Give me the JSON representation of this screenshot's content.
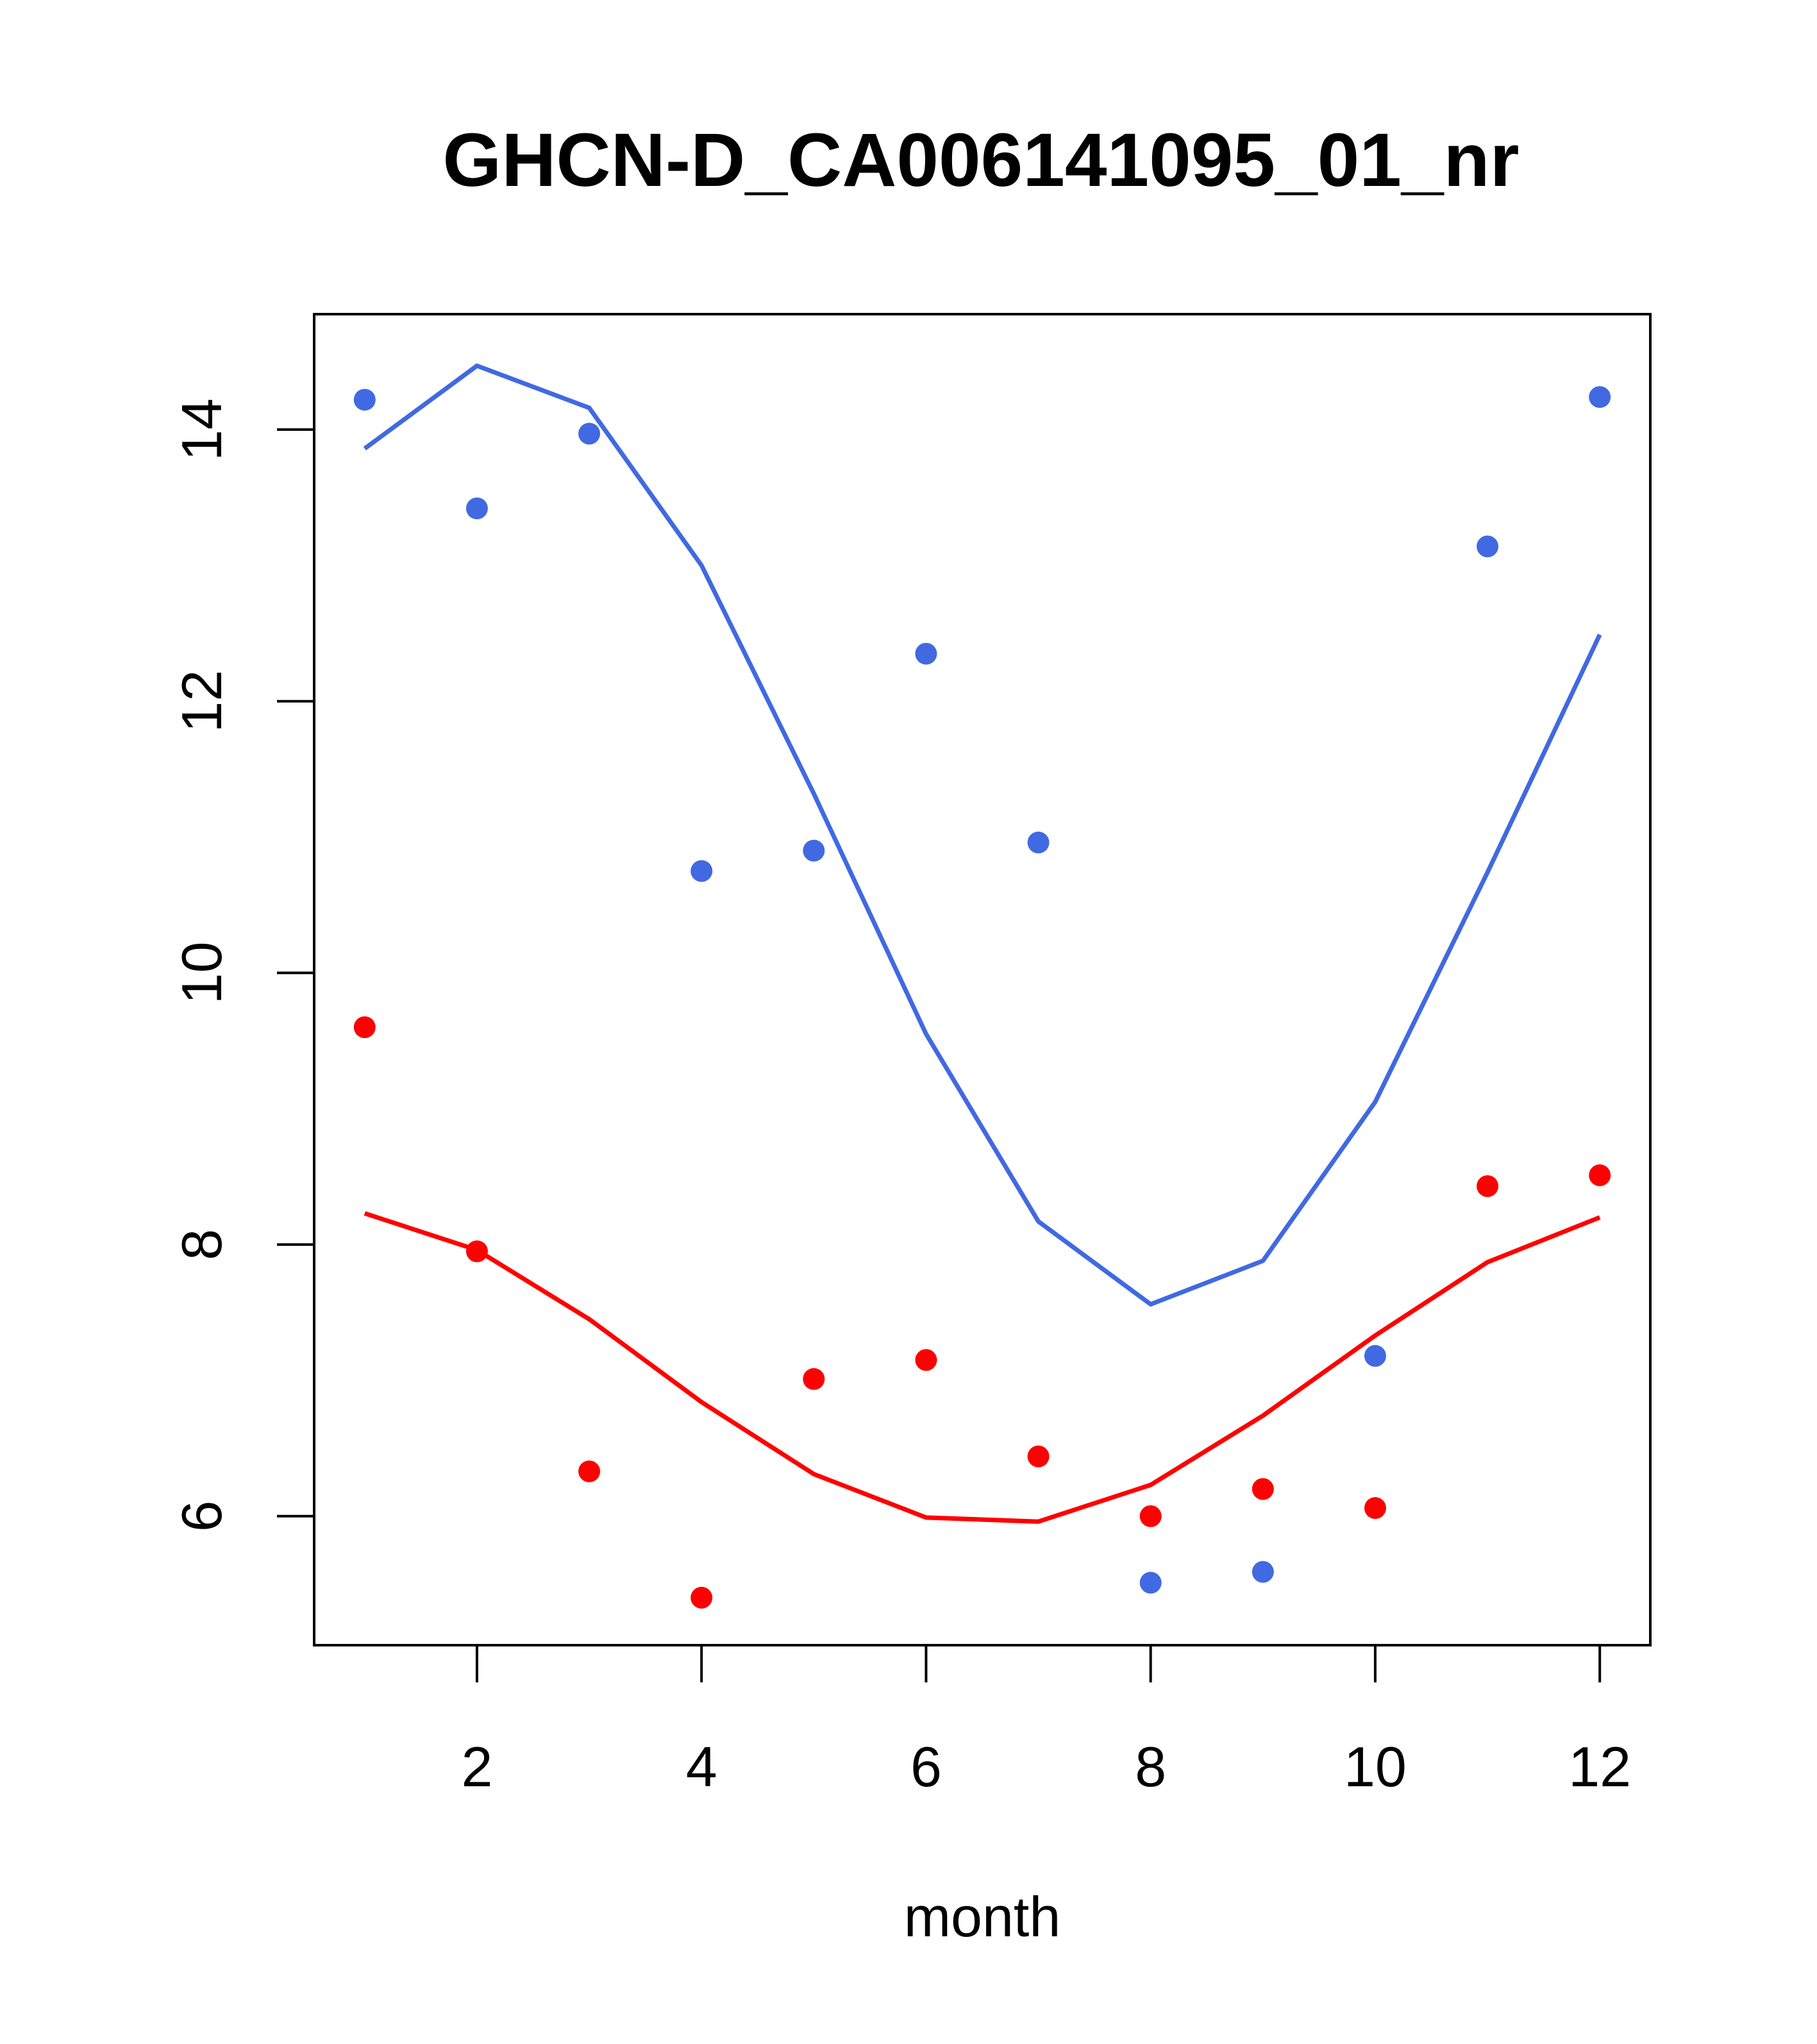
{
  "chart_data": {
    "type": "scatter",
    "title": "GHCN-D_CA006141095_01_nr",
    "xlabel": "month",
    "ylabel": "",
    "xlim": [
      0.55,
      12.45
    ],
    "ylim": [
      5.05,
      14.85
    ],
    "xticks": [
      2,
      4,
      6,
      8,
      10,
      12
    ],
    "yticks": [
      6,
      8,
      10,
      12,
      14
    ],
    "grid": false,
    "series": [
      {
        "color": "#4169E1",
        "points": {
          "x": [
            1,
            2,
            3,
            4,
            5,
            6,
            7,
            8,
            9,
            10,
            11,
            12
          ],
          "y": [
            14.22,
            13.42,
            13.97,
            10.75,
            10.9,
            12.35,
            10.96,
            5.51,
            5.59,
            7.18,
            13.14,
            14.24
          ]
        },
        "line": {
          "x": [
            1,
            2,
            3,
            4,
            5,
            6,
            7,
            8,
            9,
            10,
            11,
            12
          ],
          "y": [
            13.86,
            14.47,
            14.16,
            13.0,
            11.32,
            9.55,
            8.17,
            7.56,
            7.88,
            9.05,
            10.74,
            12.49
          ]
        }
      },
      {
        "color": "#FF0000",
        "points": {
          "x": [
            1,
            2,
            3,
            4,
            5,
            6,
            7,
            8,
            9,
            10,
            11,
            12
          ],
          "y": [
            9.6,
            7.95,
            6.33,
            5.4,
            7.01,
            7.15,
            6.44,
            6.0,
            6.2,
            6.06,
            8.43,
            8.51
          ]
        },
        "line": {
          "x": [
            1,
            2,
            3,
            4,
            5,
            6,
            7,
            8,
            9,
            10,
            11,
            12
          ],
          "y": [
            8.23,
            7.96,
            7.45,
            6.84,
            6.31,
            5.99,
            5.96,
            6.23,
            6.74,
            7.33,
            7.87,
            8.2
          ]
        }
      }
    ]
  }
}
